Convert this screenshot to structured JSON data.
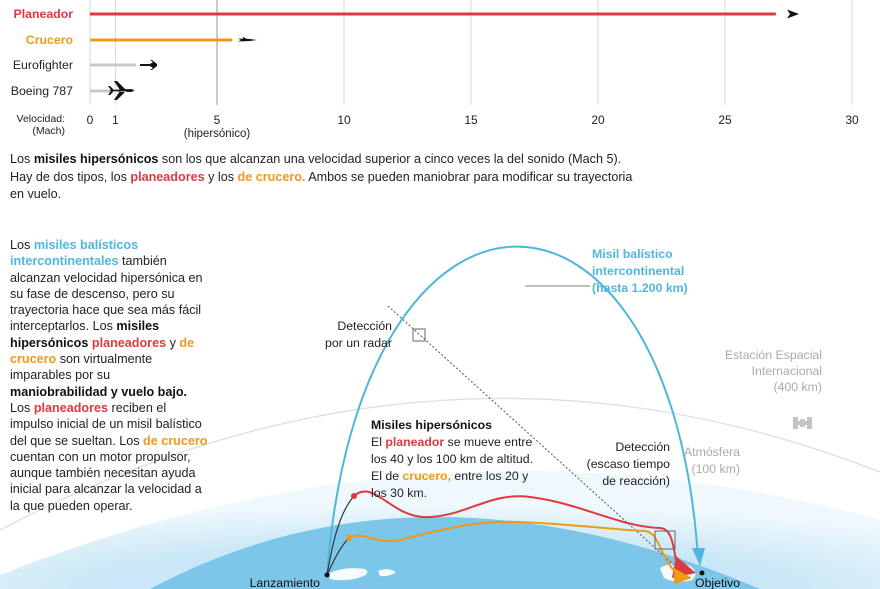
{
  "chart_data": {
    "type": "bar",
    "categories": [
      "Planeador",
      "Crucero",
      "Eurofighter",
      "Boeing 787"
    ],
    "values": [
      27,
      5.6,
      1.8,
      0.85
    ],
    "colors": [
      "#dc3a3e",
      "#ef9a14",
      "#c8c8c8",
      "#c8c8c8"
    ],
    "xlabel_line1": "Velocidad:",
    "xlabel_line2": "(Mach)",
    "xlim": [
      0,
      30
    ],
    "ticks": [
      "0",
      "1",
      "5",
      "10",
      "15",
      "20",
      "25",
      "30"
    ],
    "tick_values": [
      0,
      1,
      5,
      10,
      15,
      20,
      25,
      30
    ],
    "hypersonic_label": "(hipersónico)"
  },
  "intro": {
    "p1": "Los ",
    "s1": "misiles hipersónicos",
    "p2": " son los que alcanzan una velocidad superior a cinco veces la del sonido (Mach 5). Hay de dos tipos, los ",
    "s2": "planeadores",
    "p3": " y los ",
    "s3": "de crucero.",
    "p4": " Ambos se pueden maniobrar para modificar su trayectoria en vuelo."
  },
  "side": {
    "p1": "Los ",
    "s1": "misiles balísticos intercontinentales",
    "p2": " también alcanzan velocidad hipersónica en su fase de descenso, pero su trayectoria hace que sea más fácil interceptarlos. Los ",
    "s2": "misiles hipersónicos",
    "p3": " ",
    "s3": "planeadores",
    "p4": " y ",
    "s4": "de crucero",
    "p5": " son virtualmente imparables por su ",
    "s5": "maniobrabilidad y vuelo bajo.",
    "p6": " Los ",
    "s6": "planeadores",
    "p7": " reciben el impulso inicial de un misil balístico del que se sueltan. Los ",
    "s7": "de crucero",
    "p8": " cuentan con un motor propulsor, aunque también necesitan ayuda inicial para alcanzar la velocidad a la que pueden operar."
  },
  "diagram": {
    "icbm_label": [
      "Misil balístico",
      "intercontinental",
      "(hasta 1.200 km)"
    ],
    "radar_label": [
      "Detección",
      "por un radar"
    ],
    "iss_label": [
      "Estación Espacial",
      "Internacional",
      "(400 km)"
    ],
    "atmos_label": [
      "Atmósfera",
      "(100 km)"
    ],
    "late_label": [
      "Detección",
      "(escaso tiempo",
      "de reacción)"
    ],
    "hyper_title": "Misiles hipersónicos",
    "hyper_l1a": "El ",
    "hyper_l1b": "planeador",
    "hyper_l1c": " se mueve entre",
    "hyper_l2": "los 40 y los 100 km de altitud.",
    "hyper_l3a": "El de ",
    "hyper_l3b": "crucero,",
    "hyper_l3c": " entre los 20 y",
    "hyper_l4": "los 30 km.",
    "launch_label": "Lanzamiento",
    "target_label": "Objetivo",
    "colors": {
      "icbm": "#4fb6dc",
      "glider": "#dc3a3e",
      "cruise": "#ef9a14",
      "atmosphere": "#d8eef8",
      "ocean": "#7cc6ea",
      "gray": "#aaaaaa"
    }
  }
}
